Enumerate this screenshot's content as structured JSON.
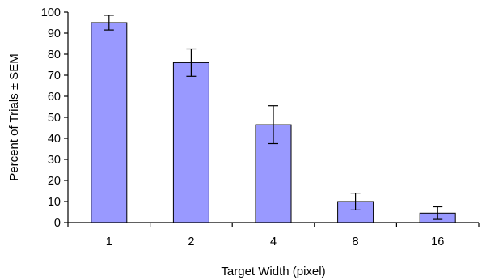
{
  "chart_data": {
    "type": "bar",
    "title": "",
    "xlabel": "Target Width (pixel)",
    "ylabel": "Percent of Trials ± SEM",
    "categories": [
      "1",
      "2",
      "4",
      "8",
      "16"
    ],
    "values": [
      95,
      76,
      46.5,
      10,
      4.5
    ],
    "error": [
      3.5,
      6.5,
      9,
      4,
      3
    ],
    "ylim": [
      0,
      100
    ],
    "yticks": [
      "0",
      "10",
      "20",
      "30",
      "40",
      "50",
      "60",
      "70",
      "80",
      "90",
      "100"
    ],
    "grid": false,
    "legend": "none",
    "bar_color": "#9999ff",
    "edge_color": "#000000"
  }
}
